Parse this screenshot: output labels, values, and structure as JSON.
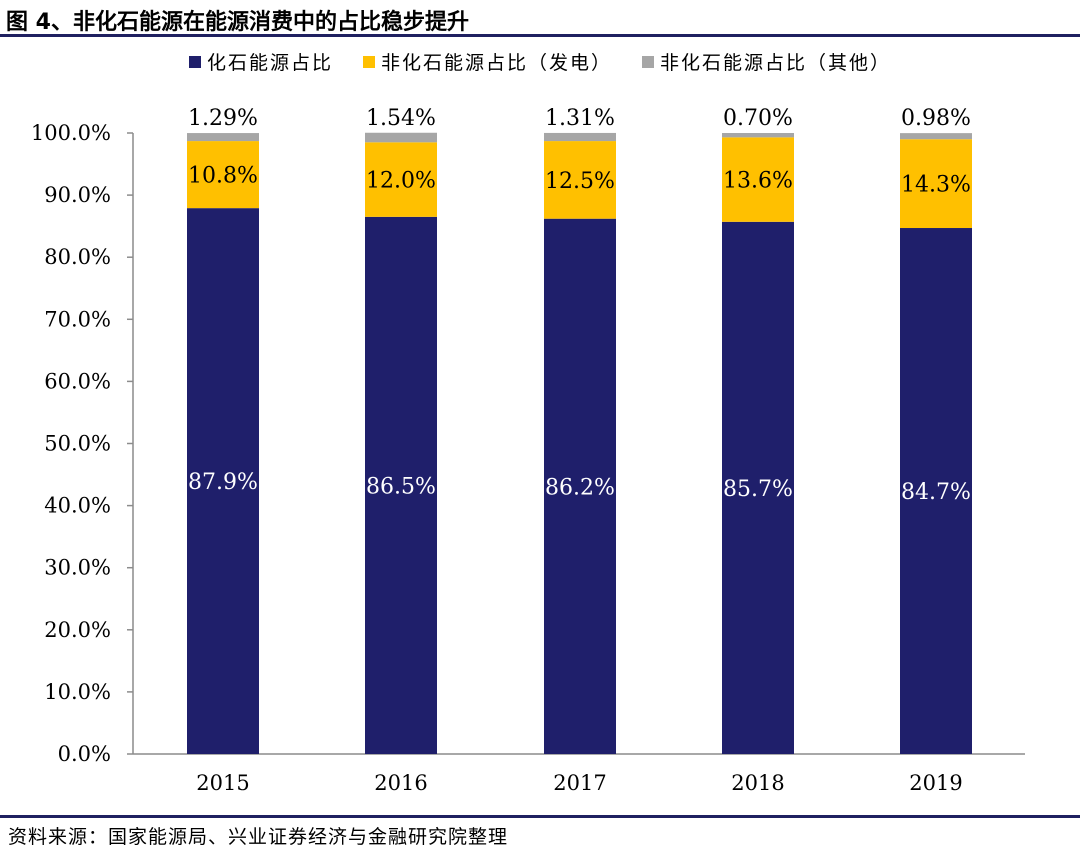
{
  "figure": {
    "title": "图 4、非化石能源在能源消费中的占比稳步提升",
    "source": "资料来源：国家能源局、兴业证券经济与金融研究院整理"
  },
  "colors": {
    "fossil": "#1f1f6b",
    "nonfossil_power": "#ffc000",
    "nonfossil_other": "#a6a6a6",
    "rule": "#1f2060"
  },
  "chart_data": {
    "type": "bar",
    "stacked": true,
    "categories": [
      "2015",
      "2016",
      "2017",
      "2018",
      "2019"
    ],
    "series": [
      {
        "name": "化石能源占比",
        "values": [
          87.9,
          86.5,
          86.2,
          85.7,
          84.7
        ],
        "labels": [
          "87.9%",
          "86.5%",
          "86.2%",
          "85.7%",
          "84.7%"
        ]
      },
      {
        "name": "非化石能源占比（发电）",
        "values": [
          10.8,
          12.0,
          12.5,
          13.6,
          14.3
        ],
        "labels": [
          "10.8%",
          "12.0%",
          "12.5%",
          "13.6%",
          "14.3%"
        ]
      },
      {
        "name": "非化石能源占比（其他）",
        "values": [
          1.29,
          1.54,
          1.31,
          0.7,
          0.98
        ],
        "labels": [
          "1.29%",
          "1.54%",
          "1.31%",
          "0.70%",
          "0.98%"
        ]
      }
    ],
    "ylim": [
      0,
      100
    ],
    "yticks": [
      "0.0%",
      "10.0%",
      "20.0%",
      "30.0%",
      "40.0%",
      "50.0%",
      "60.0%",
      "70.0%",
      "80.0%",
      "90.0%",
      "100.0%"
    ],
    "legend_position": "top",
    "grid": false
  }
}
